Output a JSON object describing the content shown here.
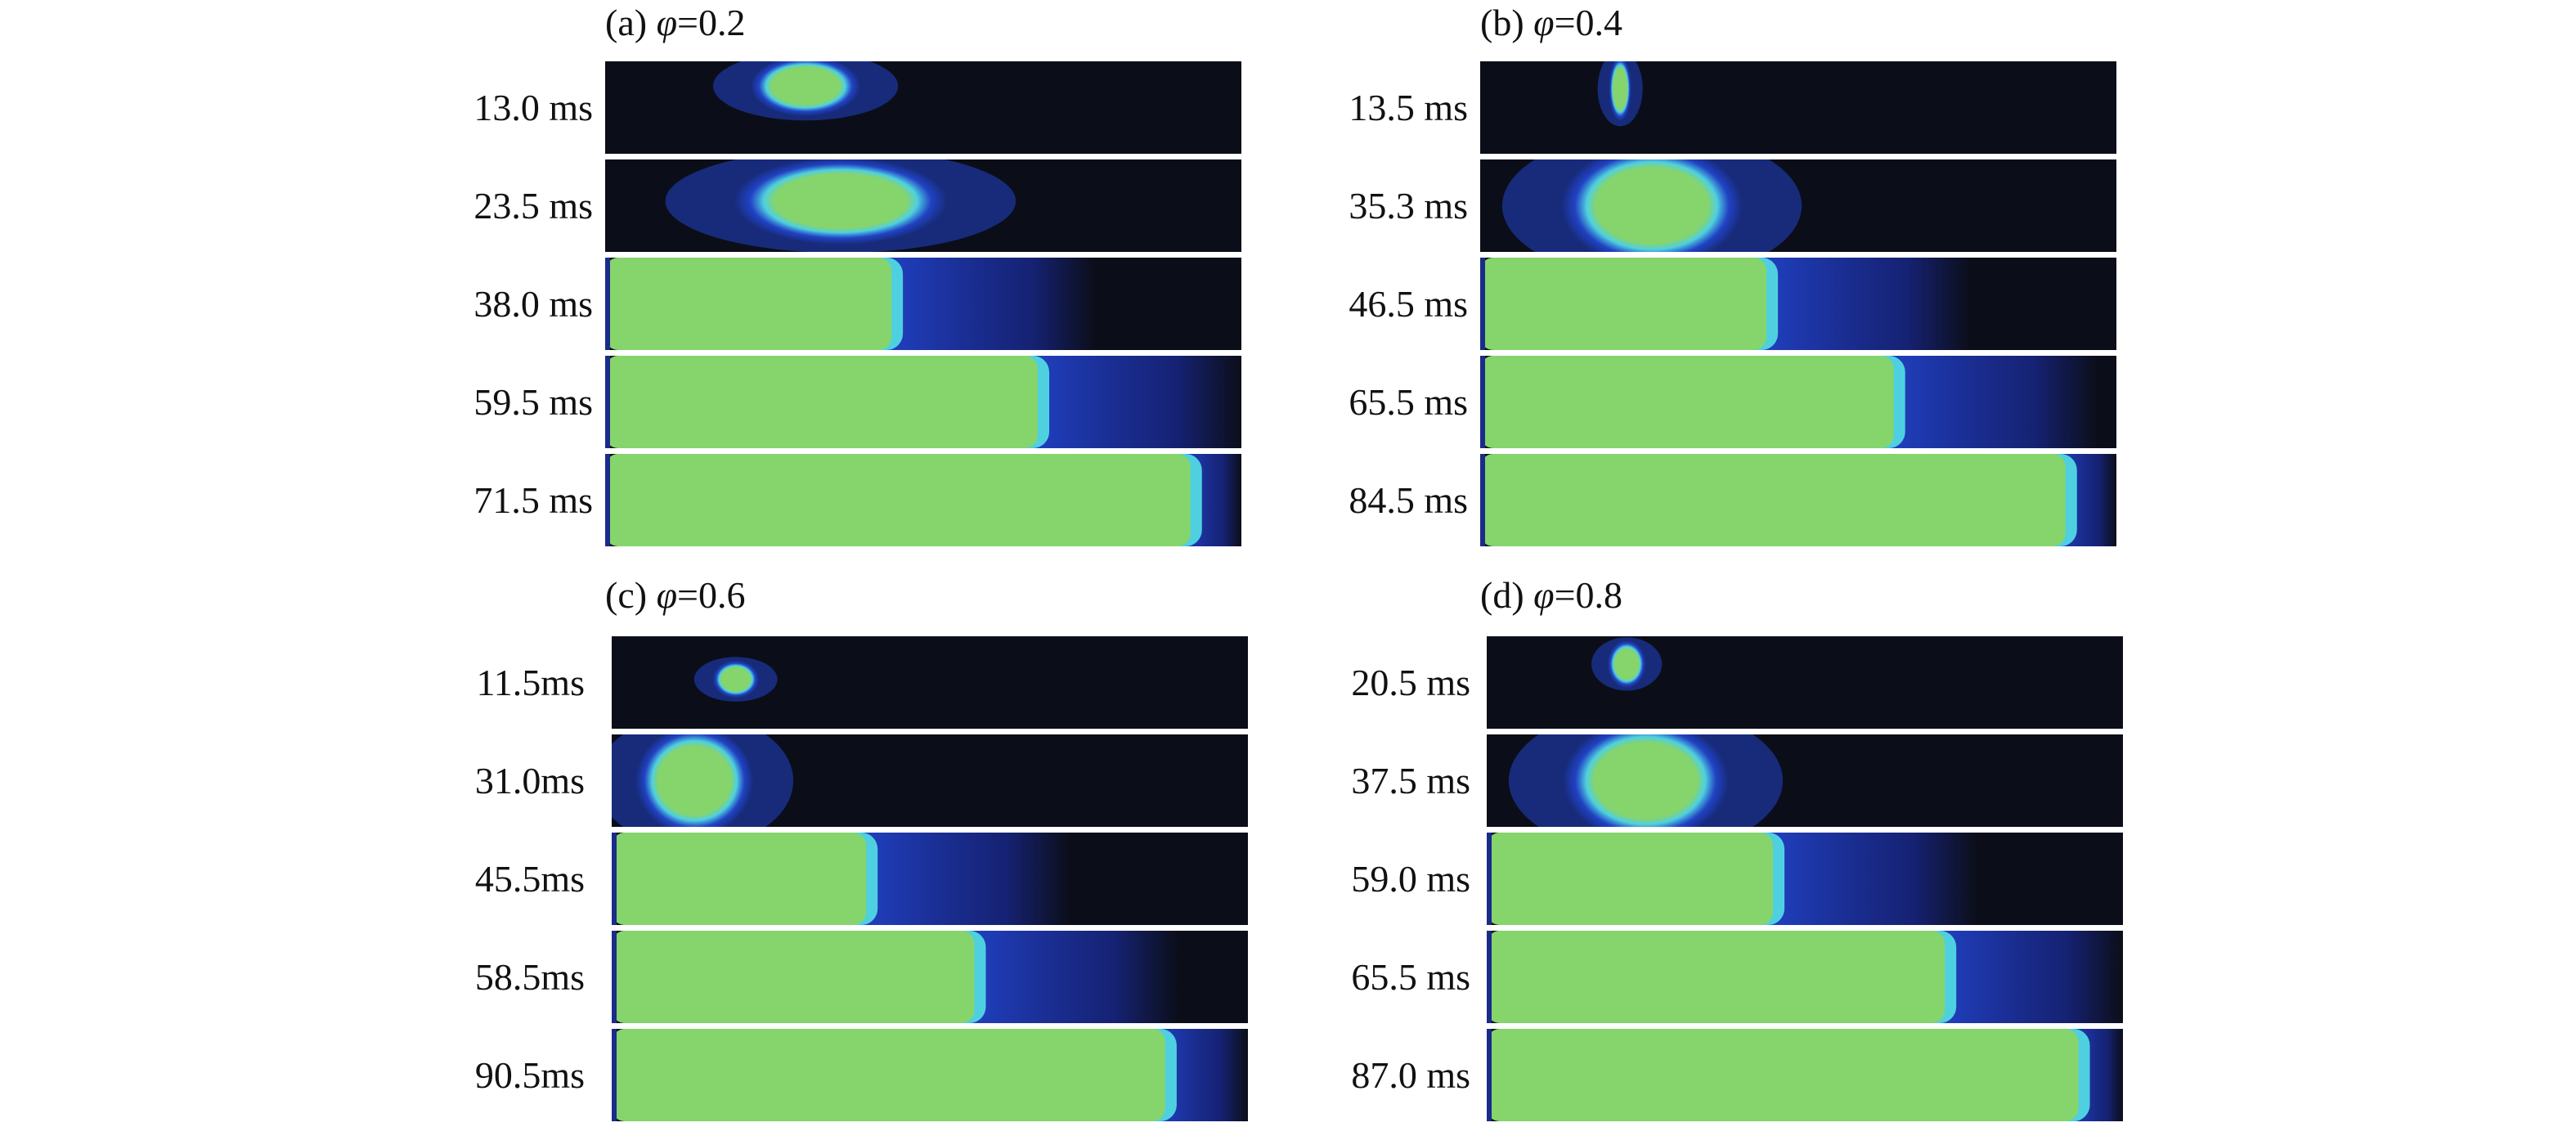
{
  "panels": [
    {
      "id": "a",
      "title_prefix": "(a) ",
      "phi_symbol": "φ",
      "title_value": "=0.2",
      "frames": [
        {
          "time": "13.0 ms",
          "front": 0.0,
          "blob": [
            0.25,
            0.38,
            0.035,
            0.5
          ]
        },
        {
          "time": "23.5 ms",
          "front": 0.0,
          "blob": [
            0.24,
            0.5,
            0.1,
            0.8
          ]
        },
        {
          "time": "38.0 ms",
          "front": 0.45,
          "blob": [
            0.11,
            0.48,
            0.02,
            1.0
          ]
        },
        {
          "time": "59.5 ms",
          "front": 0.68,
          "blob": null
        },
        {
          "time": "71.5 ms",
          "front": 0.92,
          "blob": null
        }
      ]
    },
    {
      "id": "b",
      "title_prefix": "(b) ",
      "phi_symbol": "φ",
      "title_value": "=0.4",
      "frames": [
        {
          "time": "13.5 ms",
          "front": 0.0,
          "blob": [
            0.21,
            0.23,
            0.04,
            0.55
          ]
        },
        {
          "time": "35.3 ms",
          "front": 0.0,
          "blob": [
            0.16,
            0.38,
            0.0,
            1.0
          ]
        },
        {
          "time": "46.5 ms",
          "front": 0.45,
          "blob": [
            0.11,
            0.45,
            0.0,
            1.0
          ]
        },
        {
          "time": "65.5 ms",
          "front": 0.65,
          "blob": null
        },
        {
          "time": "84.5 ms",
          "front": 0.92,
          "blob": null
        }
      ]
    },
    {
      "id": "c",
      "title_prefix": "(c) ",
      "phi_symbol": "φ",
      "title_value": "=0.6",
      "frames": [
        {
          "time": "11.5ms",
          "front": 0.0,
          "blob": [
            0.17,
            0.22,
            0.33,
            0.6
          ]
        },
        {
          "time": "31.0ms",
          "front": 0.0,
          "blob": [
            0.06,
            0.2,
            0.05,
            0.95
          ]
        },
        {
          "time": "45.5ms",
          "front": 0.4,
          "blob": [
            0.02,
            0.28,
            0.0,
            1.0
          ]
        },
        {
          "time": "58.5ms",
          "front": 0.57,
          "blob": null
        },
        {
          "time": "90.5ms",
          "front": 0.87,
          "blob": null
        }
      ]
    },
    {
      "id": "d",
      "title_prefix": "(d) ",
      "phi_symbol": "φ",
      "title_value": "=0.8",
      "frames": [
        {
          "time": "20.5 ms",
          "front": 0.0,
          "blob": [
            0.2,
            0.24,
            0.12,
            0.48
          ]
        },
        {
          "time": "37.5 ms",
          "front": 0.0,
          "blob": [
            0.15,
            0.35,
            0.0,
            1.0
          ]
        },
        {
          "time": "59.0 ms",
          "front": 0.45,
          "blob": [
            0.07,
            0.5,
            0.0,
            1.0
          ]
        },
        {
          "time": "65.5 ms",
          "front": 0.72,
          "blob": null
        },
        {
          "time": "87.0 ms",
          "front": 0.93,
          "blob": null
        }
      ]
    }
  ],
  "colors": {
    "background_dark": "#0b0e18",
    "flame_core": "#86d46c",
    "flame_edge": "#4fd0e0",
    "flame_glow": "#2244cc"
  }
}
